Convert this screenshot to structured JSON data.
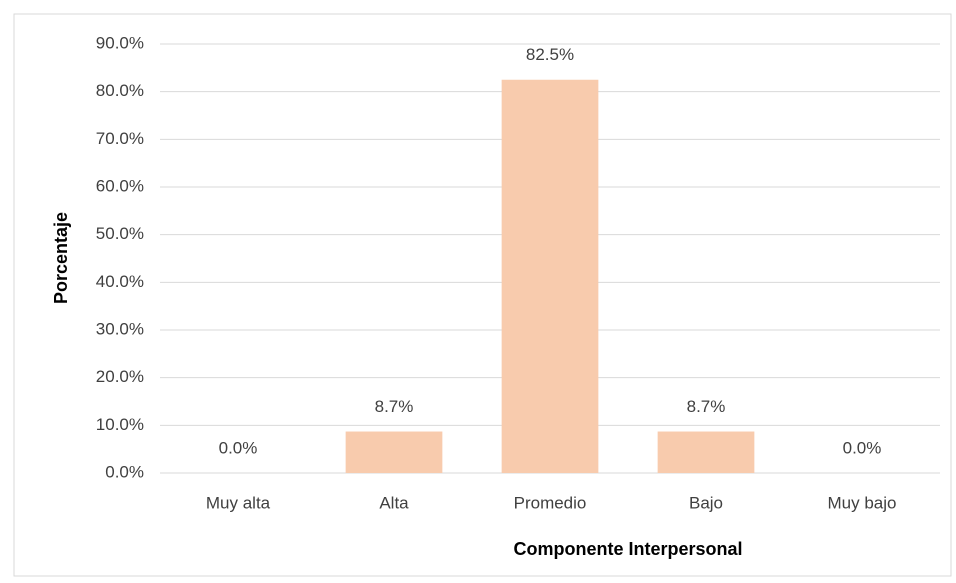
{
  "chart_data": {
    "type": "bar",
    "x_label": "Componente Interpersonal",
    "y_label": "Porcentaje",
    "categories": [
      "Muy alta",
      "Alta",
      "Promedio",
      "Bajo",
      "Muy bajo"
    ],
    "values": [
      0,
      8.7,
      82.5,
      8.7,
      0
    ],
    "value_labels": [
      "0.0%",
      "8.7%",
      "82.5%",
      "8.7%",
      "0.0%"
    ],
    "color": "#f8cbad",
    "ylim": [
      0,
      90
    ],
    "yticks": [
      {
        "value": 0,
        "label": "0.0%"
      },
      {
        "value": 10,
        "label": "10.0%"
      },
      {
        "value": 20,
        "label": "20.0%"
      },
      {
        "value": 30,
        "label": "30.0%"
      },
      {
        "value": 40,
        "label": "40.0%"
      },
      {
        "value": 50,
        "label": "50.0%"
      },
      {
        "value": 60,
        "label": "60.0%"
      },
      {
        "value": 70,
        "label": "70.0%"
      },
      {
        "value": 80,
        "label": "80.0%"
      },
      {
        "value": 90,
        "label": "90.0%"
      }
    ],
    "grid": true
  }
}
